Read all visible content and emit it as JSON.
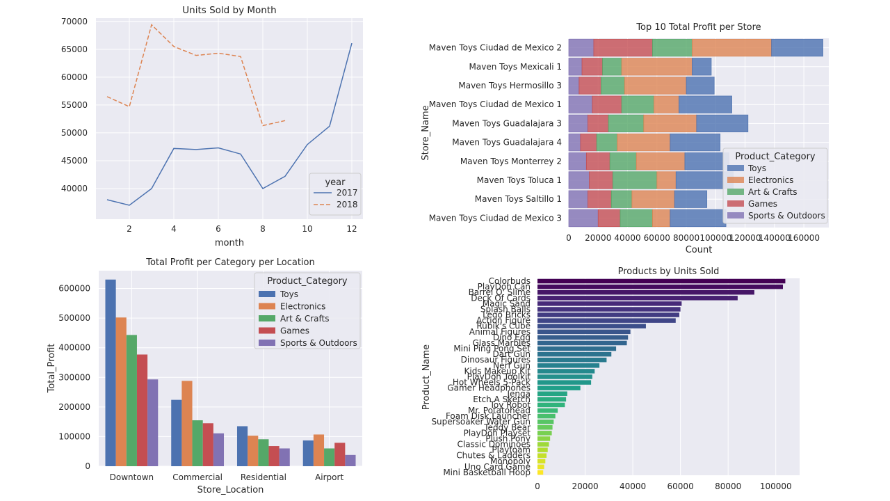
{
  "colors": {
    "plot_bg": "#eaeaf2",
    "grid": "#ffffff",
    "text": "#262626",
    "blue": "#4c72b0",
    "orange": "#dd8452",
    "green": "#55a868",
    "red": "#c44e52",
    "purple": "#8172b3"
  },
  "chart_data": [
    {
      "type": "line",
      "title": "Units Sold by Month",
      "xlabel": "month",
      "ylabel": "",
      "xlim": [
        0.5,
        12.5
      ],
      "ylim": [
        34500,
        70600
      ],
      "xticks": [
        2,
        4,
        6,
        8,
        10,
        12
      ],
      "yticks": [
        40000,
        45000,
        50000,
        55000,
        60000,
        65000,
        70000
      ],
      "grid": true,
      "legend": {
        "title": "year",
        "position": "bottom-right"
      },
      "series": [
        {
          "name": "2017",
          "style": "solid",
          "color": "#4c72b0",
          "x": [
            1,
            2,
            3,
            4,
            5,
            6,
            7,
            8,
            9,
            10,
            11,
            12
          ],
          "y": [
            38000,
            37000,
            40000,
            47200,
            47000,
            47300,
            46200,
            40000,
            42200,
            47900,
            51200,
            66100
          ]
        },
        {
          "name": "2018",
          "style": "dashed",
          "color": "#dd8452",
          "x": [
            1,
            2,
            3,
            4,
            5,
            6,
            7,
            8,
            9
          ],
          "y": [
            56500,
            54700,
            69400,
            65500,
            63900,
            64300,
            63700,
            51300,
            52200
          ]
        }
      ]
    },
    {
      "type": "bar",
      "orientation": "horizontal",
      "stacked": true,
      "title": "Top 10 Total Profit per Store",
      "xlabel": "Count",
      "ylabel": "Store_Name",
      "xlim": [
        0,
        177000
      ],
      "xticks": [
        0,
        20000,
        40000,
        60000,
        80000,
        100000,
        120000,
        140000,
        160000
      ],
      "grid": true,
      "legend": {
        "title": "Product_Category",
        "position": "bottom-right"
      },
      "categories": [
        "Maven Toys Ciudad de Mexico 2",
        "Maven Toys Mexicali 1",
        "Maven Toys Hermosillo 3",
        "Maven Toys Ciudad de Mexico 1",
        "Maven Toys Guadalajara 3",
        "Maven Toys Guadalajara 4",
        "Maven Toys Monterrey 2",
        "Maven Toys Toluca 1",
        "Maven Toys Saltillo 1",
        "Maven Toys Ciudad de Mexico 3"
      ],
      "series": [
        {
          "name": "Sports & Outdoors",
          "color": "#8172b3",
          "values": [
            17000,
            9000,
            7000,
            16000,
            13000,
            8000,
            12000,
            14000,
            13000,
            20000
          ]
        },
        {
          "name": "Games",
          "color": "#c44e52",
          "values": [
            40000,
            14000,
            15000,
            20000,
            14000,
            11000,
            16000,
            16000,
            16000,
            15000
          ]
        },
        {
          "name": "Art & Crafts",
          "color": "#55a868",
          "values": [
            27000,
            13000,
            16000,
            22000,
            24000,
            14000,
            18000,
            30000,
            14000,
            22000
          ]
        },
        {
          "name": "Electronics",
          "color": "#dd8452",
          "values": [
            54000,
            48000,
            42000,
            17000,
            36000,
            36000,
            33000,
            13000,
            29000,
            12000
          ]
        },
        {
          "name": "Toys",
          "color": "#4c72b0",
          "values": [
            35000,
            13000,
            19000,
            36000,
            35000,
            34000,
            30000,
            39000,
            22000,
            38000
          ]
        }
      ]
    },
    {
      "type": "bar",
      "orientation": "vertical",
      "grouped": true,
      "title": "Total Profit per Category per Location",
      "xlabel": "Store_Location",
      "ylabel": "Total_Profit",
      "ylim": [
        0,
        660000
      ],
      "yticks": [
        0,
        100000,
        200000,
        300000,
        400000,
        500000,
        600000
      ],
      "grid": true,
      "legend": {
        "title": "Product_Category",
        "position": "top-right"
      },
      "categories": [
        "Downtown",
        "Commercial",
        "Residential",
        "Airport"
      ],
      "series": [
        {
          "name": "Toys",
          "color": "#4c72b0",
          "values": [
            630000,
            224000,
            135000,
            87000
          ]
        },
        {
          "name": "Electronics",
          "color": "#dd8452",
          "values": [
            502000,
            288000,
            103000,
            107000
          ]
        },
        {
          "name": "Art & Crafts",
          "color": "#55a868",
          "values": [
            443000,
            155000,
            91000,
            60000
          ]
        },
        {
          "name": "Games",
          "color": "#c44e52",
          "values": [
            377000,
            145000,
            68000,
            79000
          ]
        },
        {
          "name": "Sports & Outdoors",
          "color": "#8172b3",
          "values": [
            293000,
            111000,
            60000,
            38000
          ]
        }
      ]
    },
    {
      "type": "bar",
      "orientation": "horizontal",
      "title": "Products by Units Sold",
      "xlabel": "",
      "ylabel": "Product_Name",
      "xlim": [
        0,
        110000
      ],
      "xticks": [
        0,
        20000,
        40000,
        60000,
        80000,
        100000
      ],
      "grid": true,
      "palette": "viridis",
      "categories": [
        "Colorbuds",
        "PlayDoh Can",
        "Barrel O' Slime",
        "Deck Of Cards",
        "Magic Sand",
        "Splash Balls",
        "Lego Bricks",
        "Action Figure",
        "Rubik's Cube",
        "Animal Figures",
        "Dino Egg",
        "Glass Marbles",
        "Mini Ping Pong Set",
        "Dart Gun",
        "Dinosaur Figures",
        "Nerf Gun",
        "Kids Makeup Kit",
        "PlayDoh Toolkit",
        "Hot Wheels 5-Pack",
        "Gamer Headphones",
        "Jenga",
        "Etch A Sketch",
        "Toy Robot",
        "Mr. Potatohead",
        "Foam Disk Launcher",
        "Supersoaker Water Gun",
        "Teddy Bear",
        "PlayDoh Playset",
        "Plush Pony",
        "Classic Dominoes",
        "Playfoam",
        "Chutes & Ladders",
        "Monopoly",
        "Uno Card Game",
        "Mini Basketball Hoop"
      ],
      "values": [
        104000,
        103000,
        91000,
        84000,
        60500,
        60000,
        59500,
        58000,
        45500,
        39000,
        38000,
        37500,
        33000,
        31000,
        29000,
        26000,
        24000,
        23000,
        22500,
        18000,
        12500,
        12000,
        11500,
        8500,
        7500,
        6800,
        6300,
        6000,
        5300,
        4800,
        4300,
        3800,
        3300,
        2800,
        2400
      ]
    }
  ]
}
